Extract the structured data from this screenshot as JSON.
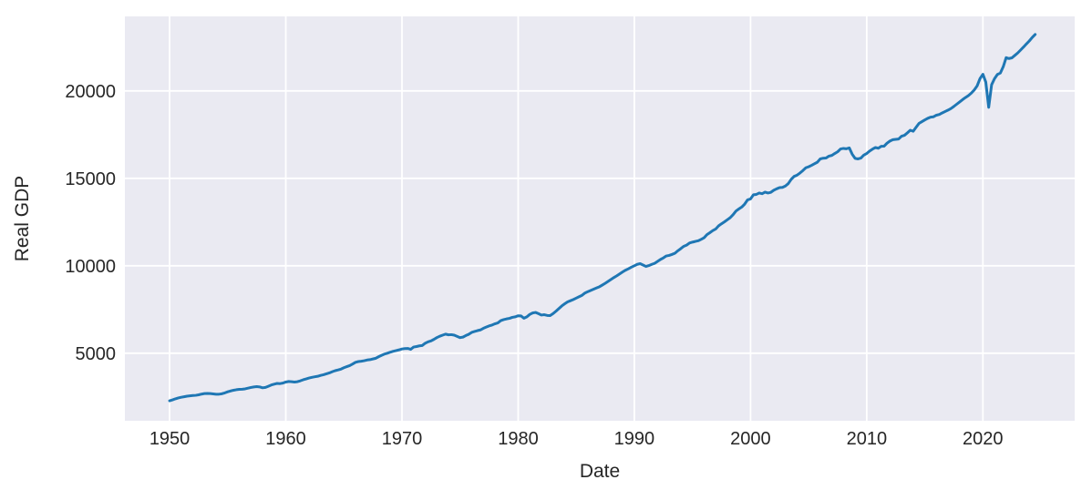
{
  "chart_data": {
    "type": "line",
    "title": "",
    "xlabel": "Date",
    "ylabel": "Real GDP",
    "x_ticks": [
      1950,
      1960,
      1970,
      1980,
      1990,
      2000,
      2010,
      2020
    ],
    "y_ticks": [
      5000,
      10000,
      15000,
      20000
    ],
    "xlim": [
      1946.15,
      2027.9
    ],
    "ylim": [
      1135,
      24260
    ],
    "grid": true,
    "legend_position": "none",
    "style": {
      "plot_bg": "#eaeaf2",
      "grid_color": "#ffffff",
      "grid_width": 1.8,
      "tick_color": "#262626",
      "tick_font_size": 20,
      "line_color": "#1f77b4",
      "line_width": 3
    },
    "series": [
      {
        "name": "Real GDP",
        "x_unit": "decimal_year",
        "x_start": 1950.0,
        "x_step": 0.25,
        "values": [
          2280,
          2330,
          2390,
          2440,
          2480,
          2510,
          2540,
          2560,
          2580,
          2590,
          2620,
          2660,
          2690,
          2700,
          2690,
          2670,
          2650,
          2655,
          2680,
          2730,
          2790,
          2840,
          2880,
          2910,
          2930,
          2940,
          2960,
          3000,
          3040,
          3070,
          3090,
          3070,
          3020,
          3040,
          3110,
          3180,
          3230,
          3270,
          3260,
          3290,
          3350,
          3380,
          3370,
          3350,
          3370,
          3420,
          3480,
          3530,
          3580,
          3620,
          3650,
          3680,
          3730,
          3770,
          3820,
          3870,
          3940,
          4000,
          4040,
          4090,
          4170,
          4230,
          4290,
          4380,
          4480,
          4520,
          4540,
          4570,
          4610,
          4630,
          4670,
          4710,
          4800,
          4880,
          4950,
          5000,
          5060,
          5110,
          5150,
          5190,
          5240,
          5260,
          5270,
          5220,
          5350,
          5380,
          5420,
          5440,
          5570,
          5650,
          5700,
          5790,
          5890,
          5970,
          6030,
          6090,
          6050,
          6060,
          6030,
          5960,
          5890,
          5920,
          6010,
          6080,
          6190,
          6240,
          6290,
          6330,
          6420,
          6490,
          6560,
          6610,
          6680,
          6730,
          6860,
          6920,
          6960,
          6990,
          7050,
          7080,
          7140,
          7130,
          7000,
          7080,
          7220,
          7300,
          7330,
          7260,
          7180,
          7200,
          7160,
          7150,
          7260,
          7400,
          7550,
          7700,
          7820,
          7930,
          8000,
          8070,
          8150,
          8230,
          8310,
          8440,
          8520,
          8590,
          8660,
          8730,
          8800,
          8900,
          9000,
          9110,
          9220,
          9330,
          9430,
          9540,
          9650,
          9750,
          9830,
          9920,
          10000,
          10080,
          10120,
          10040,
          9960,
          10010,
          10080,
          10140,
          10250,
          10360,
          10450,
          10560,
          10590,
          10650,
          10720,
          10860,
          10980,
          11110,
          11180,
          11300,
          11350,
          11390,
          11430,
          11510,
          11600,
          11780,
          11890,
          12010,
          12100,
          12280,
          12400,
          12510,
          12630,
          12750,
          12920,
          13130,
          13250,
          13360,
          13530,
          13770,
          13820,
          14060,
          14080,
          14160,
          14120,
          14210,
          14160,
          14200,
          14320,
          14400,
          14470,
          14480,
          14560,
          14700,
          14940,
          15110,
          15180,
          15300,
          15440,
          15600,
          15660,
          15740,
          15830,
          15920,
          16110,
          16150,
          16160,
          16270,
          16310,
          16420,
          16520,
          16680,
          16710,
          16690,
          16740,
          16380,
          16140,
          16110,
          16160,
          16330,
          16420,
          16560,
          16670,
          16760,
          16720,
          16830,
          16840,
          17010,
          17130,
          17210,
          17230,
          17250,
          17410,
          17460,
          17600,
          17750,
          17690,
          17920,
          18140,
          18240,
          18340,
          18430,
          18500,
          18520,
          18610,
          18650,
          18740,
          18820,
          18900,
          18990,
          19110,
          19240,
          19370,
          19500,
          19620,
          19730,
          19870,
          20050,
          20280,
          20700,
          20950,
          20500,
          19060,
          20350,
          20700,
          20940,
          21020,
          21380,
          21900,
          21850,
          21890,
          22030,
          22170,
          22340,
          22510,
          22690,
          22860,
          23060,
          23230
        ]
      }
    ]
  }
}
